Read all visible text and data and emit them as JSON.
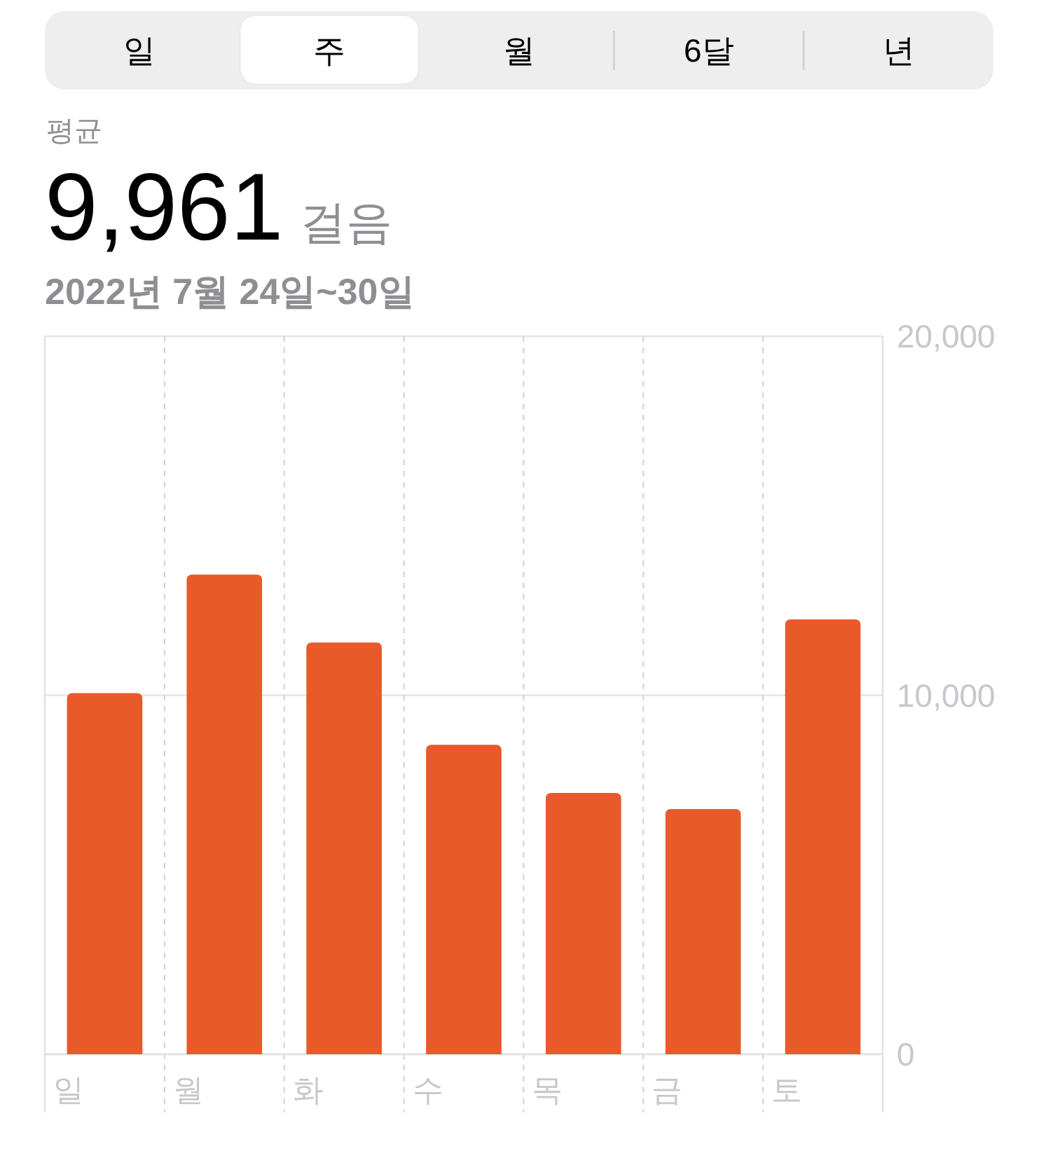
{
  "chart_data": {
    "type": "bar",
    "title": "9,961",
    "subtitle": "2022년 7월 24일~30일",
    "annotations": [
      "일",
      "주",
      "월",
      "6달",
      "년",
      "평균",
      "걸음"
    ],
    "categories": [
      "일",
      "월",
      "화",
      "수",
      "목",
      "금",
      "토"
    ],
    "values": [
      10060,
      13360,
      11470,
      8620,
      7280,
      6830,
      12110
    ],
    "color": "#e95a2b",
    "ylim": [
      0,
      20000
    ],
    "yticks": [
      0,
      {
        "value": 10000,
        "label": "10,000"
      },
      {
        "value": 20000,
        "label": "20,000"
      }
    ],
    "grid": true
  }
}
